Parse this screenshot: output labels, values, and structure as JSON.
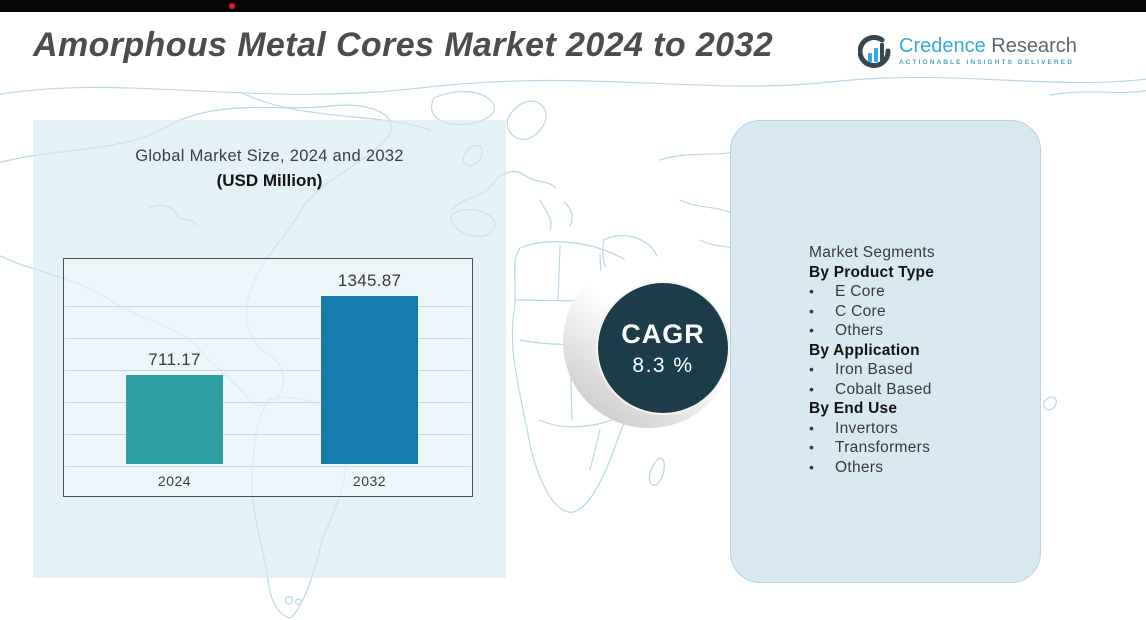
{
  "header": {
    "title": "Amorphous Metal Cores Market 2024 to 2032",
    "logo": {
      "brand_primary": "Credence",
      "brand_secondary": "Research",
      "tagline": "ACTIONABLE INSIGHTS DELIVERED"
    }
  },
  "chart_panel": {
    "title_line1": "Global Market Size,  2024 and 2032",
    "title_line2": "(USD Million)"
  },
  "chart_data": {
    "type": "bar",
    "title": "Global Market Size, 2024 and 2032 (USD Million)",
    "categories": [
      "2024",
      "2032"
    ],
    "values": [
      711.17,
      1345.87
    ],
    "value_labels": [
      "711.17",
      "1345.87"
    ],
    "unit": "USD Million",
    "bar_colors": [
      "#2fa0a2",
      "#147dad"
    ],
    "ylim": [
      0,
      1400
    ],
    "grid": true,
    "legend": false
  },
  "cagr_badge": {
    "label": "CAGR",
    "value": "8.3 %"
  },
  "segments_panel": {
    "title": "Market Segments",
    "bullet": "•",
    "groups": [
      {
        "heading": "By Product Type",
        "items": [
          "E Core",
          "C Core",
          "Others"
        ]
      },
      {
        "heading": "By Application",
        "items": [
          "Iron Based",
          "Cobalt Based"
        ]
      },
      {
        "heading": "By End Use",
        "items": [
          "Invertors",
          "Transformers",
          "Others"
        ]
      }
    ]
  },
  "colors": {
    "bar_2024": "#2fa0a2",
    "bar_2032": "#147dad",
    "cagr_circle": "#1d3c49",
    "brand_blue": "#36a9e0",
    "panel_blue": "#d7e8f1",
    "map_line": "#b7d8e7",
    "title_gray": "#4c4c4e",
    "top_bar": "#060606",
    "red_dot": "#e02020"
  }
}
